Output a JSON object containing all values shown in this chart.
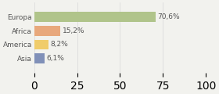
{
  "categories": [
    "Europa",
    "Africa",
    "America",
    "Asia"
  ],
  "values": [
    70.6,
    15.2,
    8.2,
    6.1
  ],
  "labels": [
    "70,6%",
    "15,2%",
    "8,2%",
    "6,1%"
  ],
  "bar_colors": [
    "#b0c48a",
    "#e8a87c",
    "#f0cc6a",
    "#8090b8"
  ],
  "background_color": "#f2f2ee",
  "xlim": [
    0,
    100
  ],
  "bar_height": 0.72,
  "label_fontsize": 6.5,
  "tick_fontsize": 6.5,
  "grid_color": "#d8d8d8",
  "text_color": "#555555"
}
